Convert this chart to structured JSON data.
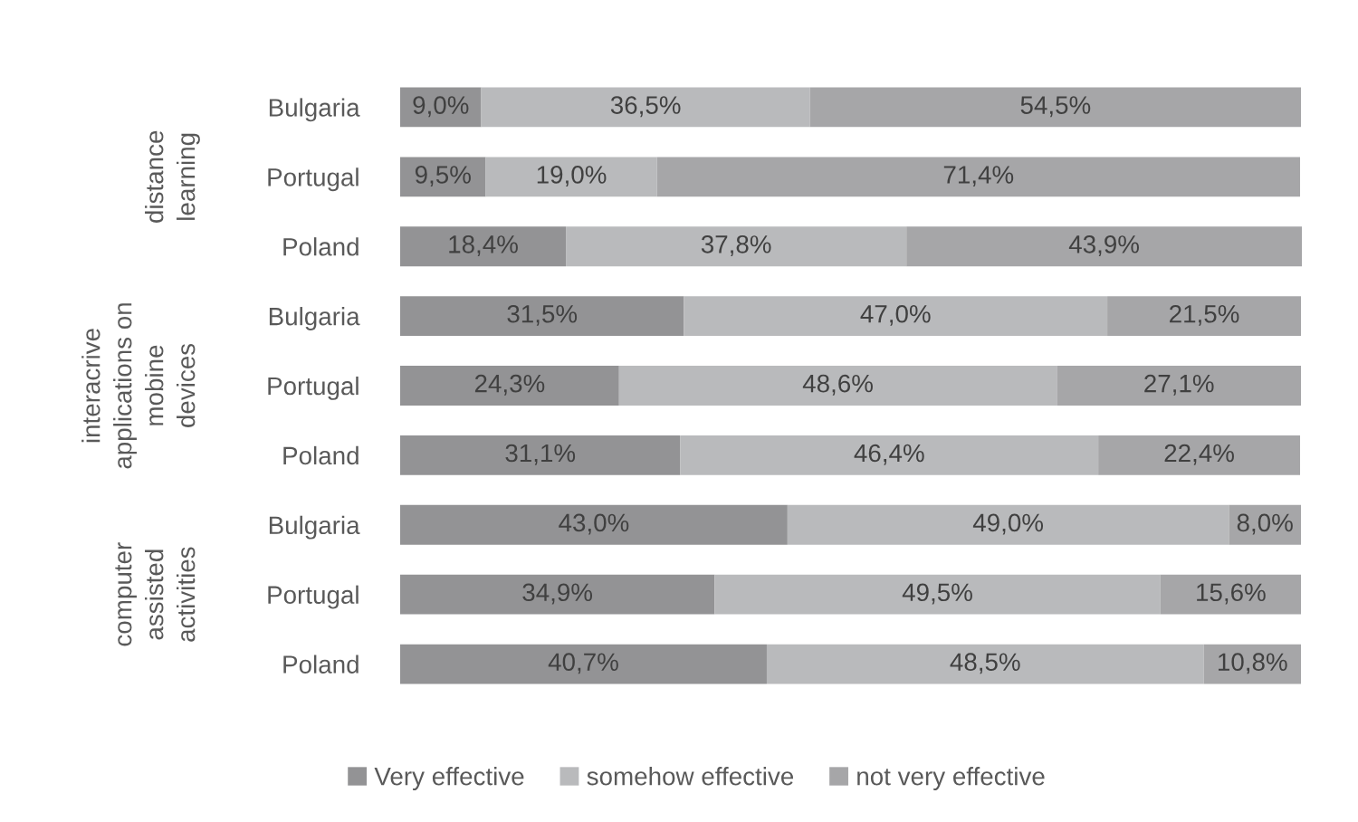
{
  "chart_data": {
    "type": "bar",
    "orientation": "horizontal",
    "stacked": true,
    "tick_labels": "y",
    "legend": "bottom",
    "categories": [
      "Bulgaria",
      "Portugal",
      "Poland",
      "Bulgaria",
      "Portugal",
      "Poland",
      "Bulgaria",
      "Portugal",
      "Poland"
    ],
    "annotations": [
      "distance\nlearning",
      "interacrive\napplications on\nmobine\ndevices",
      "computer\nassisted\nactivities"
    ],
    "series": [
      {
        "name": "Very effective",
        "color": "#939395",
        "values": [
          9.0,
          9.5,
          18.4,
          31.5,
          24.3,
          31.1,
          43.0,
          34.9,
          40.7
        ],
        "value_labels": [
          "9,0%",
          "9,5%",
          "18,4%",
          "31,5%",
          "24,3%",
          "31,1%",
          "43,0%",
          "34,9%",
          "40,7%"
        ]
      },
      {
        "name": "somehow effective",
        "color": "#b9babc",
        "values": [
          36.5,
          19.0,
          37.8,
          47.0,
          48.6,
          46.4,
          49.0,
          49.5,
          48.5
        ],
        "value_labels": [
          "36,5%",
          "19,0%",
          "37,8%",
          "47,0%",
          "48,6%",
          "46,4%",
          "49,0%",
          "49,5%",
          "48,5%"
        ]
      },
      {
        "name": "not very effective",
        "color": "#a6a6a8",
        "values": [
          54.5,
          71.4,
          43.9,
          21.5,
          27.1,
          22.4,
          8.0,
          15.6,
          10.8
        ],
        "value_labels": [
          "54,5%",
          "71,4%",
          "43,9%",
          "21,5%",
          "27,1%",
          "22,4%",
          "8,0%",
          "15,6%",
          "10,8%"
        ]
      }
    ]
  }
}
